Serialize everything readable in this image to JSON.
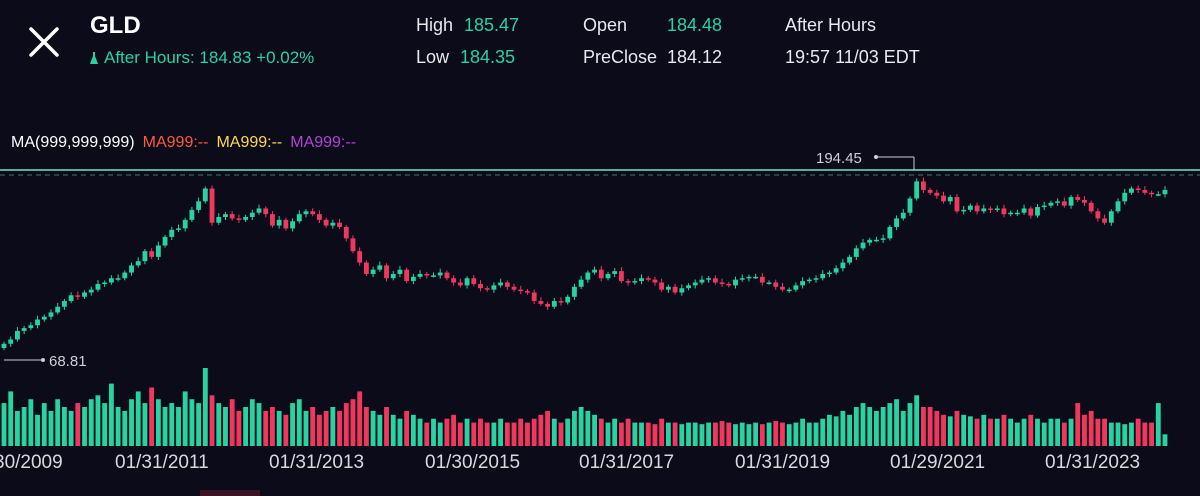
{
  "header": {
    "ticker": "GLD",
    "after_hours_line": "After Hours: 184.83 +0.02%",
    "high_label": "High",
    "high_value": "185.47",
    "low_label": "Low",
    "low_value": "184.35",
    "open_label": "Open",
    "open_value": "184.48",
    "preclose_label": "PreClose",
    "preclose_value": "184.12",
    "session_label": "After Hours",
    "session_time": "19:57 11/03 EDT"
  },
  "ma_legend": {
    "title": "MA(999,999,999)",
    "ma1": "MA999:--",
    "ma2": "MA999:--",
    "ma3": "MA999:--"
  },
  "colors": {
    "up": "#27d3a0",
    "down": "#f0385e",
    "ma1": "#ff5a3c",
    "ma2": "#ffd94a",
    "ma3": "#b044d4",
    "background": "#0b0b1a"
  },
  "chart_data": {
    "type": "candlestick",
    "x_labels": [
      "30/2009",
      "01/31/2011",
      "01/31/2013",
      "01/30/2015",
      "01/31/2017",
      "01/31/2019",
      "01/29/2021",
      "01/31/2023"
    ],
    "annotations": {
      "max_label": "194.45",
      "min_label": "68.81"
    },
    "reference_line": 184.83,
    "price_axis": [
      68.81,
      194.45
    ],
    "series_monthly_close": [
      75,
      78,
      84,
      86,
      88,
      92,
      94,
      97,
      101,
      105,
      109,
      108,
      111,
      113,
      117,
      118,
      121,
      121,
      125,
      130,
      133,
      140,
      136,
      144,
      150,
      155,
      156,
      162,
      169,
      175,
      184,
      160,
      164,
      166,
      163,
      162,
      164,
      167,
      170,
      166,
      158,
      162,
      156,
      161,
      166,
      168,
      166,
      162,
      158,
      160,
      157,
      149,
      140,
      132,
      124,
      127,
      130,
      121,
      124,
      127,
      119,
      122,
      124,
      123,
      123,
      125,
      121,
      118,
      116,
      121,
      117,
      114,
      113,
      116,
      118,
      115,
      113,
      112,
      111,
      105,
      103,
      101,
      105,
      104,
      108,
      115,
      120,
      125,
      127,
      121,
      124,
      126,
      119,
      118,
      119,
      121,
      120,
      118,
      113,
      115,
      111,
      114,
      116,
      118,
      120,
      121,
      118,
      117,
      116,
      120,
      121,
      122,
      122,
      118,
      118,
      115,
      113,
      113,
      116,
      119,
      120,
      121,
      124,
      125,
      128,
      132,
      136,
      142,
      146,
      148,
      148,
      149,
      157,
      163,
      167,
      177,
      189,
      183,
      181,
      179,
      175,
      178,
      168,
      169,
      172,
      168,
      170,
      169,
      170,
      166,
      167,
      167,
      170,
      165,
      171,
      172,
      174,
      175,
      172,
      178,
      176,
      174,
      168,
      163,
      160,
      168,
      175,
      181,
      184,
      183,
      181,
      180,
      180,
      183
    ],
    "volume_relative": [
      0.55,
      0.7,
      0.45,
      0.5,
      0.6,
      0.4,
      0.55,
      0.45,
      0.6,
      0.5,
      0.45,
      0.55,
      0.5,
      0.6,
      0.65,
      0.55,
      0.8,
      0.5,
      0.45,
      0.6,
      0.7,
      0.55,
      0.75,
      0.6,
      0.5,
      0.55,
      0.5,
      0.7,
      0.6,
      0.55,
      1.0,
      0.65,
      0.55,
      0.5,
      0.6,
      0.45,
      0.5,
      0.6,
      0.55,
      0.45,
      0.5,
      0.45,
      0.4,
      0.55,
      0.6,
      0.45,
      0.5,
      0.4,
      0.45,
      0.5,
      0.45,
      0.55,
      0.6,
      0.7,
      0.5,
      0.45,
      0.4,
      0.5,
      0.4,
      0.35,
      0.45,
      0.4,
      0.35,
      0.3,
      0.35,
      0.3,
      0.35,
      0.4,
      0.3,
      0.35,
      0.3,
      0.35,
      0.3,
      0.3,
      0.35,
      0.3,
      0.3,
      0.35,
      0.3,
      0.35,
      0.4,
      0.45,
      0.35,
      0.3,
      0.35,
      0.45,
      0.5,
      0.45,
      0.4,
      0.35,
      0.3,
      0.35,
      0.3,
      0.35,
      0.3,
      0.3,
      0.3,
      0.28,
      0.35,
      0.3,
      0.3,
      0.28,
      0.3,
      0.3,
      0.28,
      0.3,
      0.3,
      0.32,
      0.3,
      0.28,
      0.3,
      0.28,
      0.3,
      0.28,
      0.3,
      0.32,
      0.3,
      0.28,
      0.3,
      0.35,
      0.3,
      0.3,
      0.35,
      0.4,
      0.38,
      0.45,
      0.4,
      0.5,
      0.55,
      0.5,
      0.45,
      0.5,
      0.55,
      0.6,
      0.45,
      0.55,
      0.65,
      0.5,
      0.5,
      0.45,
      0.4,
      0.38,
      0.45,
      0.4,
      0.38,
      0.35,
      0.4,
      0.35,
      0.35,
      0.4,
      0.35,
      0.3,
      0.35,
      0.4,
      0.35,
      0.3,
      0.35,
      0.35,
      0.3,
      0.35,
      0.55,
      0.4,
      0.45,
      0.35,
      0.35,
      0.3,
      0.3,
      0.28,
      0.3,
      0.35,
      0.3,
      0.3,
      0.55,
      0.15
    ]
  }
}
